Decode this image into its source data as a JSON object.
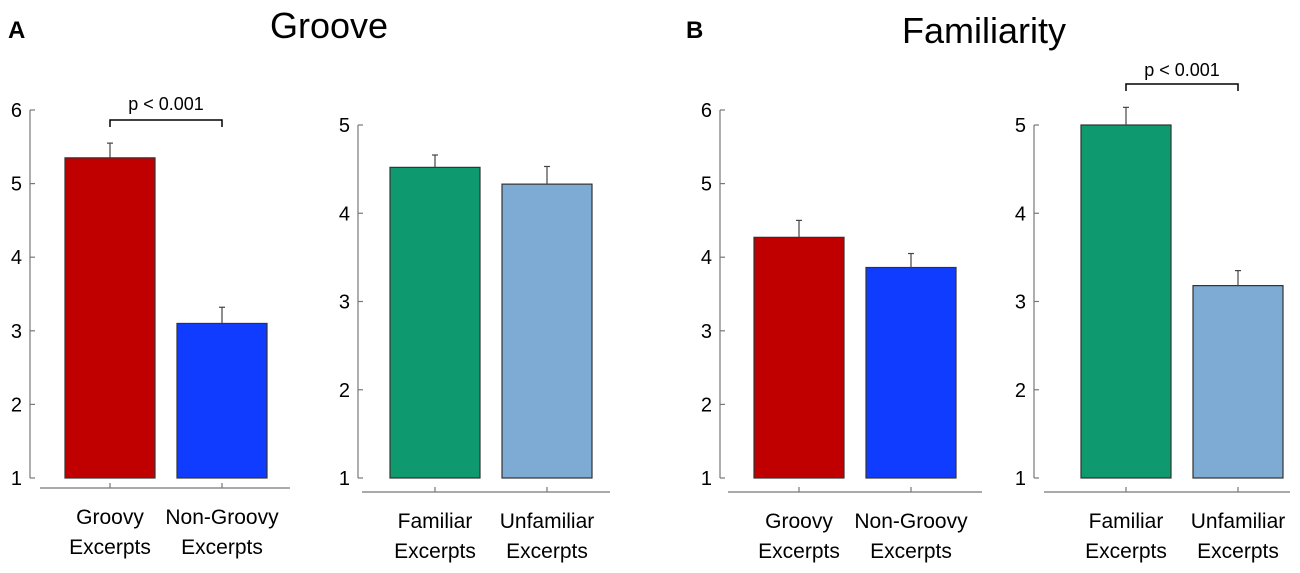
{
  "panels": [
    {
      "letter": "A",
      "title": "Groove"
    },
    {
      "letter": "B",
      "title": "Familiarity"
    }
  ],
  "chart_data": [
    {
      "type": "bar",
      "panel": "A",
      "title": "Groove",
      "categories": [
        [
          "Groovy",
          "Excerpts"
        ],
        [
          "Non-Groovy",
          "Excerpts"
        ]
      ],
      "values": [
        5.35,
        3.1
      ],
      "errors": [
        0.2,
        0.22
      ],
      "colors": [
        "#c00000",
        "#0f3cff"
      ],
      "ylim": [
        1,
        6
      ],
      "yticks": [
        1,
        2,
        3,
        4,
        5,
        6
      ],
      "significance": {
        "label": "p < 0.001",
        "between": [
          0,
          1
        ]
      }
    },
    {
      "type": "bar",
      "panel": "A",
      "title": "Groove",
      "categories": [
        [
          "Familiar",
          "Excerpts"
        ],
        [
          "Unfamiliar",
          "Excerpts"
        ]
      ],
      "values": [
        4.52,
        4.33
      ],
      "errors": [
        0.14,
        0.2
      ],
      "colors": [
        "#0e9a6e",
        "#7eabd3"
      ],
      "ylim": [
        1,
        5
      ],
      "yticks": [
        1,
        2,
        3,
        4,
        5
      ],
      "significance": null
    },
    {
      "type": "bar",
      "panel": "B",
      "title": "Familiarity",
      "categories": [
        [
          "Groovy",
          "Excerpts"
        ],
        [
          "Non-Groovy",
          "Excerpts"
        ]
      ],
      "values": [
        4.27,
        3.86
      ],
      "errors": [
        0.23,
        0.19
      ],
      "colors": [
        "#c00000",
        "#0f3cff"
      ],
      "ylim": [
        1,
        6
      ],
      "yticks": [
        1,
        2,
        3,
        4,
        5,
        6
      ],
      "significance": null
    },
    {
      "type": "bar",
      "panel": "B",
      "title": "Familiarity",
      "categories": [
        [
          "Familiar",
          "Excerpts"
        ],
        [
          "Unfamiliar",
          "Excerpts"
        ]
      ],
      "values": [
        5.0,
        3.18
      ],
      "errors": [
        0.2,
        0.17
      ],
      "colors": [
        "#0e9a6e",
        "#7eabd3"
      ],
      "ylim": [
        1,
        5
      ],
      "yticks": [
        1,
        2,
        3,
        4,
        5
      ],
      "significance": {
        "label": "p < 0.001",
        "between": [
          0,
          1
        ]
      }
    }
  ]
}
